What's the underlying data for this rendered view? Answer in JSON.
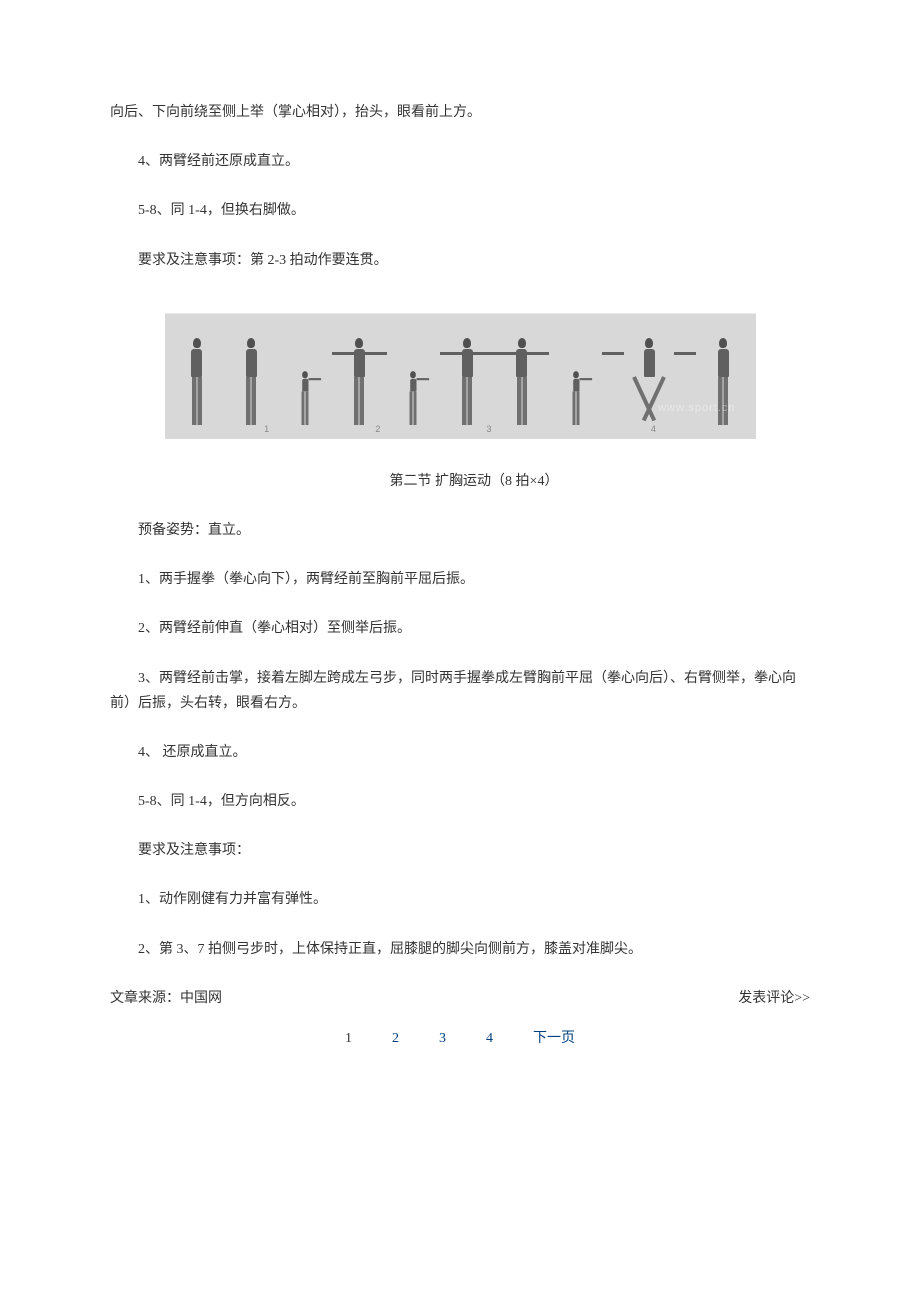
{
  "content": {
    "p1": "向后、下向前绕至侧上举（掌心相对），抬头，眼看前上方。",
    "p2": "4、两臂经前还原成直立。",
    "p3": "5-8、同 1-4，但换右脚做。",
    "p4": "要求及注意事项：第 2-3 拍动作要连贯。",
    "section_title": "第二节 扩胸运动（8 拍×4）",
    "p5": "预备姿势：直立。",
    "p6": "1、两手握拳（拳心向下），两臂经前至胸前平屈后振。",
    "p7": "2、两臂经前伸直（拳心相对）至侧举后振。",
    "p8": "3、两臂经前击掌，接着左脚左跨成左弓步，同时两手握拳成左臂胸前平屈（拳心向后）、右臂侧举，拳心向前）后振，头右转，眼看右方。",
    "p9": "4、 还原成直立。",
    "p10": "5-8、同 1-4，但方向相反。",
    "p11": "要求及注意事项：",
    "p12": "1、动作刚健有力并富有弹性。",
    "p13": "2、第 3、7 拍侧弓步时，上体保持正直，屈膝腿的脚尖向侧前方，膝盖对准脚尖。"
  },
  "figure": {
    "numbers": [
      "1",
      "2",
      "3",
      "4"
    ],
    "watermark": "www.sport.cn",
    "bg_color": "#d8d8d8"
  },
  "footer": {
    "source_label": "文章来源：中国网",
    "comment_label": "发表评论>>"
  },
  "pagination": {
    "current": "1",
    "pages": [
      "2",
      "3",
      "4"
    ],
    "next": "下一页"
  },
  "colors": {
    "text": "#333333",
    "link": "#004080",
    "background": "#ffffff"
  }
}
